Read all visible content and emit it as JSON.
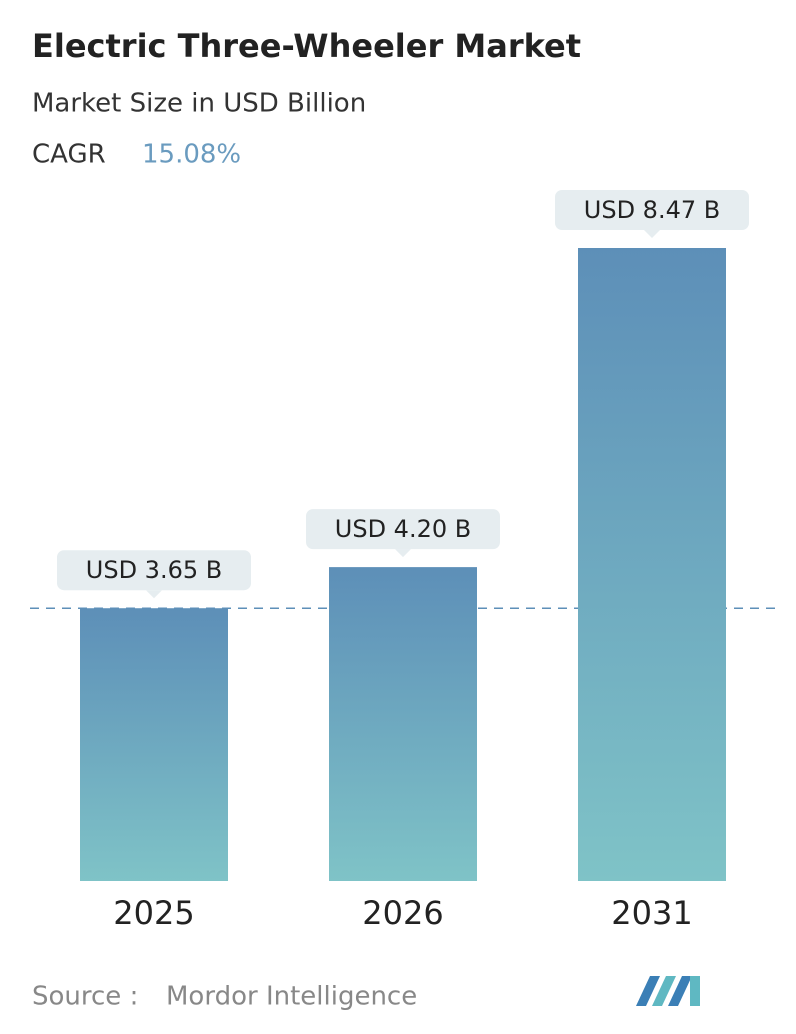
{
  "chart_data": {
    "type": "bar",
    "title": "Electric Three-Wheeler Market",
    "subtitle": "Market Size in USD Billion",
    "cagr_label": "CAGR",
    "cagr_value": "15.08%",
    "categories": [
      "2025",
      "2026",
      "2031"
    ],
    "values": [
      3.65,
      4.2,
      8.47
    ],
    "value_labels": [
      "USD 3.65 B",
      "USD 4.20 B",
      "USD 8.47 B"
    ],
    "color_top": "#5d8fb8",
    "color_bottom": "#7fc3c7",
    "source_label": "Source :",
    "source": "Mordor Intelligence"
  }
}
